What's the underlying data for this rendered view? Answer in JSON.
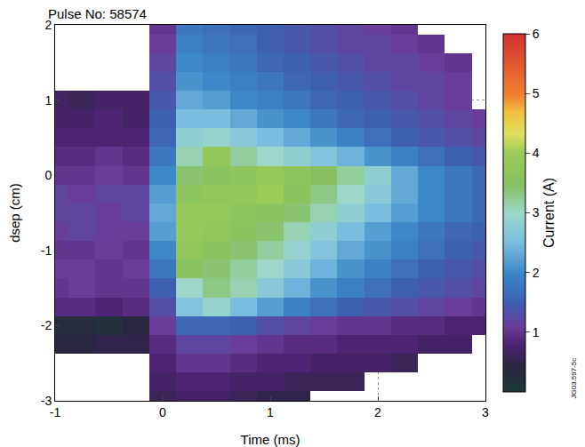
{
  "chart_data": {
    "type": "heatmap",
    "title": "Pulse No: 58574",
    "x_label": "Time (ms)",
    "y_label": "dsep (cm)",
    "x": [
      -1,
      -0.75,
      -0.5,
      -0.25,
      0,
      0.25,
      0.5,
      0.75,
      1,
      1.25,
      1.5,
      1.75,
      2,
      2.25,
      2.5,
      2.75,
      3
    ],
    "y": [
      -3,
      -2.75,
      -2.5,
      -2.25,
      -2,
      -1.75,
      -1.5,
      -1.25,
      -1,
      -0.75,
      -0.5,
      -0.25,
      0,
      0.25,
      0.5,
      0.75,
      1,
      1.25,
      1.5,
      1.75,
      2
    ],
    "cells": [
      [
        null,
        null,
        null,
        null,
        0.6,
        0.7,
        0.7,
        0.6,
        0.5,
        0.5,
        null,
        null,
        null,
        null,
        null,
        null,
        null
      ],
      [
        null,
        null,
        null,
        null,
        0.7,
        0.8,
        0.8,
        0.7,
        0.7,
        0.6,
        0.6,
        0.6,
        null,
        null,
        null,
        null,
        null
      ],
      [
        null,
        null,
        null,
        null,
        0.8,
        1.0,
        1.0,
        0.9,
        0.8,
        0.8,
        0.7,
        0.7,
        0.7,
        0.6,
        null,
        null,
        null
      ],
      [
        0.4,
        0.4,
        0.5,
        0.5,
        0.9,
        1.2,
        1.2,
        1.1,
        1.0,
        0.9,
        0.9,
        0.8,
        0.8,
        0.8,
        0.7,
        0.7,
        null
      ],
      [
        0.3,
        0.3,
        0.2,
        0.4,
        1.1,
        1.6,
        1.6,
        1.5,
        1.3,
        1.2,
        1.1,
        1.0,
        1.0,
        0.9,
        0.9,
        0.8,
        0.8
      ],
      [
        0.9,
        0.9,
        0.8,
        0.9,
        1.3,
        2.6,
        2.9,
        2.5,
        2.2,
        1.9,
        1.7,
        1.5,
        1.4,
        1.3,
        1.2,
        1.1,
        1.0
      ],
      [
        1.0,
        1.1,
        1.0,
        1.0,
        1.5,
        3.0,
        3.3,
        3.1,
        2.7,
        2.4,
        2.1,
        1.9,
        1.7,
        1.5,
        1.4,
        1.3,
        1.2
      ],
      [
        1.1,
        1.1,
        1.0,
        1.1,
        1.8,
        3.6,
        3.4,
        3.2,
        3.0,
        2.7,
        2.4,
        2.1,
        1.9,
        1.7,
        1.5,
        1.4,
        1.3
      ],
      [
        1.0,
        1.0,
        1.1,
        1.0,
        2.0,
        3.8,
        3.6,
        3.4,
        3.2,
        2.9,
        2.6,
        2.3,
        2.1,
        1.9,
        1.7,
        1.5,
        1.4
      ],
      [
        1.1,
        1.2,
        1.1,
        1.1,
        2.2,
        3.9,
        3.8,
        3.6,
        3.4,
        3.1,
        2.8,
        2.5,
        2.2,
        2.0,
        1.8,
        1.6,
        1.5
      ],
      [
        1.2,
        1.2,
        1.1,
        1.2,
        2.3,
        3.9,
        3.9,
        3.7,
        3.6,
        3.4,
        3.1,
        2.8,
        2.5,
        2.2,
        2.0,
        1.8,
        1.6
      ],
      [
        1.2,
        1.1,
        1.2,
        1.2,
        2.2,
        3.7,
        3.8,
        3.8,
        4.0,
        3.6,
        3.3,
        3.0,
        2.7,
        2.3,
        2.0,
        1.8,
        1.6
      ],
      [
        1.0,
        1.0,
        1.1,
        1.0,
        2.0,
        3.4,
        3.6,
        3.7,
        3.9,
        3.7,
        3.5,
        3.2,
        2.8,
        2.3,
        2.0,
        1.8,
        1.6
      ],
      [
        0.9,
        0.9,
        1.0,
        0.9,
        1.8,
        3.1,
        3.8,
        3.2,
        3.0,
        2.8,
        2.6,
        2.4,
        2.1,
        1.9,
        1.7,
        1.5,
        1.4
      ],
      [
        0.8,
        0.8,
        0.8,
        0.8,
        1.6,
        2.8,
        2.9,
        2.7,
        2.5,
        2.3,
        2.1,
        1.9,
        1.7,
        1.5,
        1.4,
        1.3,
        1.2
      ],
      [
        0.7,
        0.7,
        0.8,
        0.7,
        1.5,
        2.5,
        2.5,
        2.3,
        2.1,
        2.0,
        1.8,
        1.6,
        1.5,
        1.4,
        1.3,
        1.2,
        1.1
      ],
      [
        0.7,
        0.6,
        0.7,
        0.7,
        1.4,
        2.3,
        2.2,
        2.0,
        1.9,
        1.8,
        1.6,
        1.5,
        1.4,
        1.3,
        1.2,
        1.1,
        null
      ],
      [
        null,
        null,
        null,
        null,
        1.3,
        2.1,
        2.0,
        1.9,
        1.8,
        1.6,
        1.5,
        1.4,
        1.3,
        1.2,
        1.2,
        1.1,
        null
      ],
      [
        null,
        null,
        null,
        null,
        1.2,
        2.0,
        1.9,
        1.8,
        1.6,
        1.5,
        1.4,
        1.3,
        1.2,
        1.2,
        1.1,
        1.0,
        null
      ],
      [
        null,
        null,
        null,
        null,
        1.1,
        1.9,
        1.8,
        1.7,
        1.5,
        1.4,
        1.3,
        1.2,
        1.2,
        1.1,
        1.0,
        null,
        null
      ],
      [
        null,
        null,
        null,
        null,
        1.0,
        1.8,
        1.7,
        1.6,
        1.5,
        1.4,
        1.3,
        1.2,
        1.1,
        1.0,
        null,
        null,
        null
      ]
    ],
    "xlim": [
      -1,
      3
    ],
    "xticks": [
      -1,
      0,
      1,
      2,
      3
    ],
    "ylim": [
      -3,
      2
    ],
    "yticks": [
      -3,
      -2,
      -1,
      0,
      1,
      2
    ],
    "colorbar_label": "Current (A)",
    "colorbar_range": [
      0,
      6
    ],
    "colorbar_ticks": [
      1,
      2,
      3,
      4,
      5,
      6
    ],
    "grid": true,
    "annotations": [
      {
        "text": "JG03.597-5c"
      }
    ]
  }
}
